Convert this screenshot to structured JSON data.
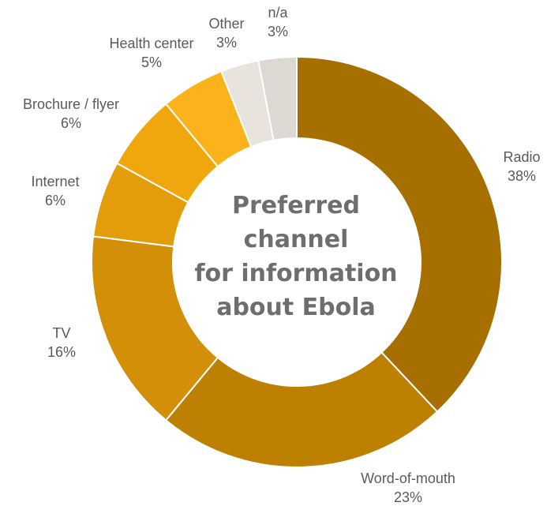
{
  "chart_data": {
    "type": "pie",
    "variant": "donut",
    "title_lines": [
      "Preferred",
      "channel",
      "for information",
      "about Ebola"
    ],
    "slices": [
      {
        "name": "Radio",
        "value": 38,
        "label": "38%",
        "color": "#A66F00"
      },
      {
        "name": "Word-of-mouth",
        "value": 23,
        "label": "23%",
        "color": "#BD8000"
      },
      {
        "name": "TV",
        "value": 16,
        "label": "16%",
        "color": "#D38F08"
      },
      {
        "name": "Internet",
        "value": 6,
        "label": "6%",
        "color": "#E39C0A"
      },
      {
        "name": "Brochure / flyer",
        "value": 6,
        "label": "6%",
        "color": "#F0A70D"
      },
      {
        "name": "Health center",
        "value": 5,
        "label": "5%",
        "color": "#FCB21A"
      },
      {
        "name": "Other",
        "value": 3,
        "label": "3%",
        "color": "#E8E3DC"
      },
      {
        "name": "n/a",
        "value": 3,
        "label": "3%",
        "color": "#DDD8D1"
      }
    ]
  }
}
